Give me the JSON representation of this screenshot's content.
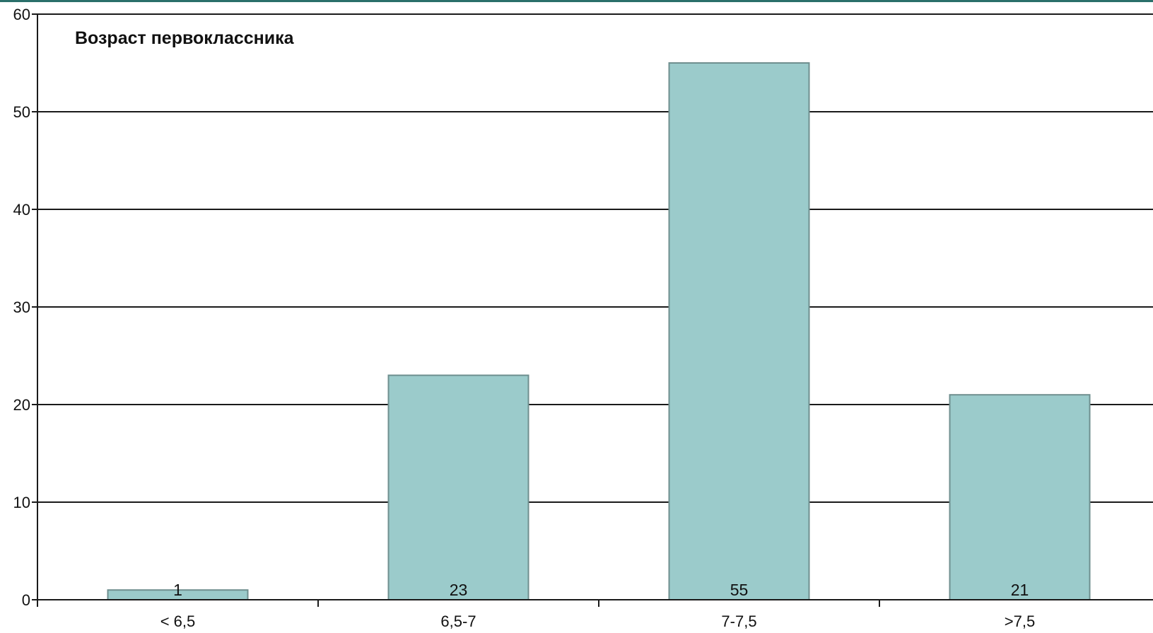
{
  "colors": {
    "bar_fill": "#9bcbcb",
    "bar_stroke": "#6f8f8f",
    "grid": "#1a1a1a",
    "axis": "#1a1a1a",
    "top_rule": "#2a6f6a",
    "text": "#111111"
  },
  "chart_data": {
    "type": "bar",
    "title": "Возраст первоклассника",
    "xlabel": "",
    "ylabel": "",
    "categories": [
      "< 6,5",
      "6,5-7",
      "7-7,5",
      ">7,5"
    ],
    "values": [
      1,
      23,
      55,
      21
    ],
    "data_labels": [
      "1",
      "23",
      "55",
      "21"
    ],
    "ylim": [
      0,
      60
    ],
    "yticks": [
      0,
      10,
      20,
      30,
      40,
      50,
      60
    ],
    "ytick_labels": [
      "0",
      "10",
      "20",
      "30",
      "40",
      "50",
      "60"
    ],
    "grid": true,
    "legend": "none"
  }
}
